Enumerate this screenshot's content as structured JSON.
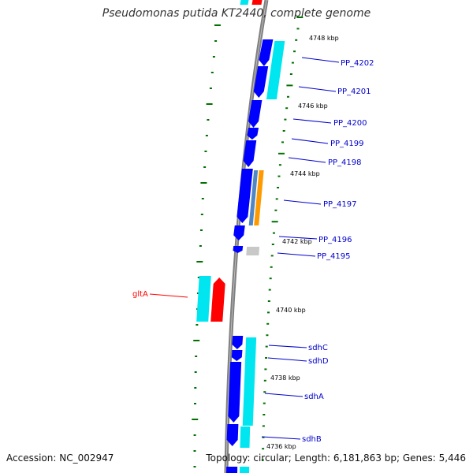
{
  "header": {
    "title": "Pseudomonas putida KT2440, complete genome"
  },
  "footer": {
    "accession": "Accession: NC_002947",
    "topology": "Topology: circular; Length: 6,181,863 bp; Genes: 5,446"
  },
  "colors": {
    "backbone": "#808080",
    "tick": "#007000",
    "kbp_label": "#000000",
    "gene_forward": "#0000ff",
    "gene_cds": "#00e6f0",
    "gene_highlight": "#ff0000",
    "gene_highlight_label": "#ff0000",
    "gene_label": "#0000cc",
    "gene_steelblue": "#4f86c6",
    "gene_orange": "#ff9900",
    "gene_gray": "#c8c8c8"
  },
  "scale_labels": [
    "4748 kbp",
    "4746 kbp",
    "4744 kbp",
    "4742 kbp",
    "4740 kbp",
    "4738 kbp",
    "4736 kbp"
  ],
  "gene_labels": [
    {
      "text": "PP_4202",
      "side": "right"
    },
    {
      "text": "PP_4201",
      "side": "right"
    },
    {
      "text": "PP_4200",
      "side": "right"
    },
    {
      "text": "PP_4199",
      "side": "right"
    },
    {
      "text": "PP_4198",
      "side": "right"
    },
    {
      "text": "PP_4197",
      "side": "right"
    },
    {
      "text": "PP_4196",
      "side": "right"
    },
    {
      "text": "PP_4195",
      "side": "right"
    },
    {
      "text": "gltA",
      "side": "left",
      "highlight": true
    },
    {
      "text": "sdhC",
      "side": "right"
    },
    {
      "text": "sdhD",
      "side": "right"
    },
    {
      "text": "sdhA",
      "side": "right"
    },
    {
      "text": "sdhB",
      "side": "right"
    }
  ]
}
